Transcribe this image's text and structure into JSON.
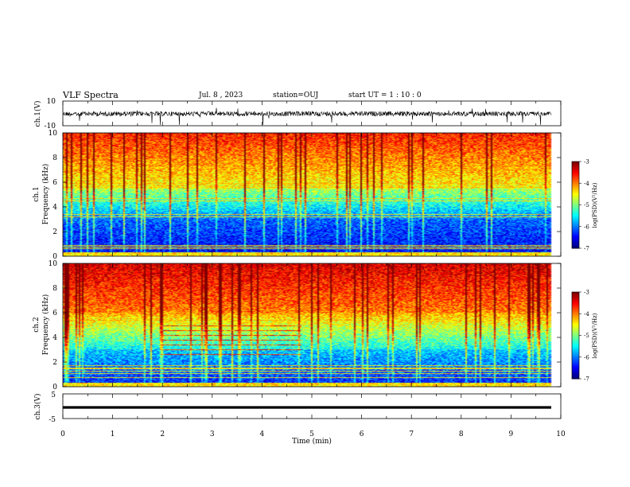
{
  "header": {
    "title": "VLF Spectra",
    "date": "Jul. 8 , 2023",
    "station": "station=OUJ",
    "start": "start UT = 1 : 10 : 0"
  },
  "chart_data": [
    {
      "type": "line",
      "ylabel": "ch.1(V)",
      "ylim": [
        -10,
        10
      ],
      "ytick_labels": [
        "10",
        "-10"
      ],
      "xlim": [
        0,
        10
      ]
    },
    {
      "type": "heatmap",
      "ylabel": "ch.1\nFrequency (kHz)",
      "ylim": [
        0,
        10
      ],
      "ytick_labels": [
        "0",
        "2",
        "4",
        "6",
        "8",
        "10"
      ],
      "colorbar": {
        "label": "log(PSD)(V²/Hz)",
        "range": [
          -7,
          -3
        ],
        "tick_labels": [
          "-3",
          "-4",
          "-5",
          "-6",
          "-7"
        ]
      }
    },
    {
      "type": "heatmap",
      "ylabel": "ch.2\nFrequency (kHz)",
      "ylim": [
        0,
        10
      ],
      "ytick_labels": [
        "0",
        "2",
        "4",
        "6",
        "8",
        "10"
      ],
      "colorbar": {
        "label": "log(PSD)(V²/Hz)",
        "range": [
          -7,
          -3
        ],
        "tick_labels": [
          "-3",
          "-4",
          "-5",
          "-6",
          "-7"
        ]
      }
    },
    {
      "type": "line",
      "ylabel": "ch.3(V)",
      "ylim": [
        -5,
        5
      ],
      "ytick_labels": [
        "5",
        "-5"
      ],
      "xlim": [
        0,
        10
      ],
      "xlabel": "Time (min)",
      "xtick_labels": [
        "0",
        "1",
        "2",
        "3",
        "4",
        "5",
        "6",
        "7",
        "8",
        "9",
        "10"
      ]
    }
  ],
  "colors": {
    "jet": [
      "#00007f",
      "#0000ff",
      "#0080ff",
      "#00ffff",
      "#80ff80",
      "#ffff00",
      "#ff8000",
      "#ff0000",
      "#7f0000"
    ]
  }
}
